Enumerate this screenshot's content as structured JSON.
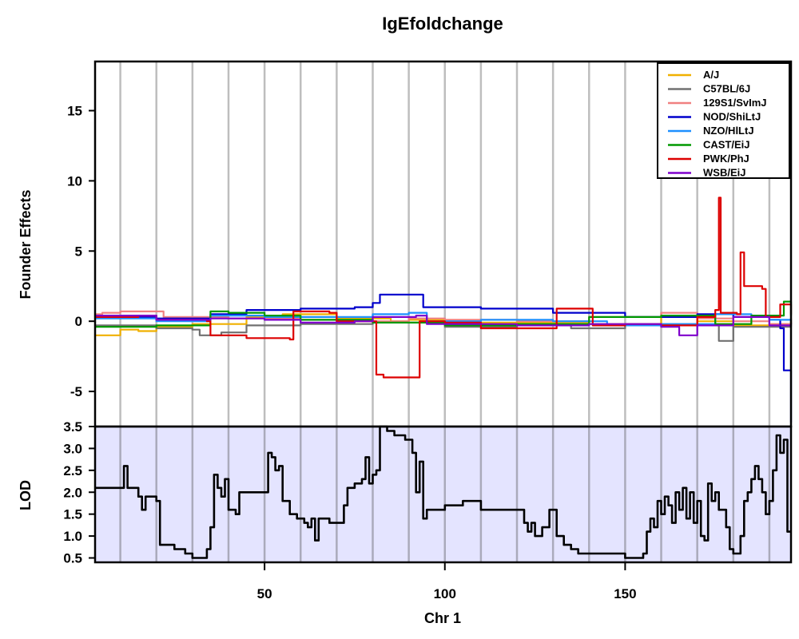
{
  "chart_data": [
    {
      "panel": "founder-effects",
      "type": "line",
      "title": "IgEfoldchange",
      "xlabel": "Chr 1",
      "ylabel": "Founder Effects",
      "xlim": [
        3,
        196
      ],
      "ylim": [
        -7.5,
        18.5
      ],
      "yticks": [
        -5,
        0,
        5,
        10,
        15
      ],
      "chromosome_grid_lines_every": 10,
      "legend": {
        "placement": "top-right"
      },
      "series": [
        {
          "name": "A/J",
          "color": "#F0B000",
          "points": [
            [
              3,
              -1.0
            ],
            [
              10,
              -0.6
            ],
            [
              15,
              -0.7
            ],
            [
              20,
              -0.4
            ],
            [
              30,
              -0.2
            ],
            [
              45,
              0.3
            ],
            [
              55,
              0.5
            ],
            [
              70,
              0.2
            ],
            [
              85,
              0.0
            ],
            [
              90,
              0.1
            ],
            [
              100,
              -0.1
            ],
            [
              120,
              -0.1
            ],
            [
              140,
              -0.2
            ],
            [
              160,
              0.3
            ],
            [
              170,
              0.0
            ],
            [
              180,
              -0.3
            ],
            [
              190,
              -0.2
            ],
            [
              196,
              0.2
            ]
          ]
        },
        {
          "name": "C57BL/6J",
          "color": "#707070",
          "points": [
            [
              3,
              -0.3
            ],
            [
              20,
              -0.5
            ],
            [
              30,
              -0.6
            ],
            [
              32,
              -1.0
            ],
            [
              38,
              -0.8
            ],
            [
              45,
              -0.3
            ],
            [
              60,
              -0.2
            ],
            [
              80,
              -0.1
            ],
            [
              100,
              -0.4
            ],
            [
              120,
              -0.3
            ],
            [
              135,
              -0.5
            ],
            [
              150,
              -0.2
            ],
            [
              170,
              -0.3
            ],
            [
              176,
              -1.4
            ],
            [
              180,
              -0.4
            ],
            [
              190,
              -0.4
            ],
            [
              196,
              0.0
            ]
          ]
        },
        {
          "name": "129S1/SvImJ",
          "color": "#F08080",
          "points": [
            [
              3,
              0.5
            ],
            [
              5,
              0.6
            ],
            [
              10,
              0.7
            ],
            [
              20,
              0.7
            ],
            [
              22,
              0.3
            ],
            [
              40,
              0.2
            ],
            [
              60,
              0.1
            ],
            [
              80,
              0.0
            ],
            [
              90,
              0.2
            ],
            [
              100,
              0.1
            ],
            [
              120,
              0.0
            ],
            [
              140,
              0.3
            ],
            [
              160,
              0.6
            ],
            [
              170,
              0.2
            ],
            [
              180,
              0.0
            ],
            [
              190,
              -0.2
            ],
            [
              196,
              0.1
            ]
          ]
        },
        {
          "name": "NOD/ShiLtJ",
          "color": "#0000CC",
          "points": [
            [
              3,
              0.3
            ],
            [
              20,
              0.2
            ],
            [
              35,
              0.5
            ],
            [
              45,
              0.8
            ],
            [
              60,
              0.9
            ],
            [
              75,
              1.0
            ],
            [
              80,
              1.3
            ],
            [
              82,
              1.9
            ],
            [
              92,
              1.9
            ],
            [
              94,
              1.0
            ],
            [
              110,
              0.9
            ],
            [
              130,
              0.6
            ],
            [
              150,
              0.3
            ],
            [
              170,
              0.5
            ],
            [
              180,
              0.3
            ],
            [
              190,
              0.1
            ],
            [
              193,
              -0.5
            ],
            [
              194,
              -3.5
            ],
            [
              196,
              -7.2
            ]
          ]
        },
        {
          "name": "NZO/HlLtJ",
          "color": "#1E90FF",
          "points": [
            [
              3,
              0.2
            ],
            [
              20,
              0.0
            ],
            [
              35,
              0.4
            ],
            [
              50,
              0.3
            ],
            [
              65,
              0.3
            ],
            [
              80,
              0.5
            ],
            [
              90,
              0.6
            ],
            [
              95,
              0.0
            ],
            [
              110,
              0.1
            ],
            [
              130,
              0.0
            ],
            [
              145,
              -0.3
            ],
            [
              160,
              -0.2
            ],
            [
              175,
              0.5
            ],
            [
              185,
              0.3
            ],
            [
              190,
              0.1
            ],
            [
              196,
              0.0
            ]
          ]
        },
        {
          "name": "CAST/EiJ",
          "color": "#009900",
          "points": [
            [
              3,
              -0.4
            ],
            [
              20,
              -0.3
            ],
            [
              35,
              0.7
            ],
            [
              40,
              0.6
            ],
            [
              50,
              0.4
            ],
            [
              60,
              0.1
            ],
            [
              80,
              -0.1
            ],
            [
              100,
              -0.3
            ],
            [
              120,
              -0.2
            ],
            [
              140,
              0.3
            ],
            [
              160,
              0.4
            ],
            [
              175,
              -0.2
            ],
            [
              185,
              0.4
            ],
            [
              194,
              1.4
            ],
            [
              196,
              0.4
            ]
          ]
        },
        {
          "name": "PWK/PhJ",
          "color": "#DD0000",
          "points": [
            [
              3,
              0.3
            ],
            [
              15,
              0.4
            ],
            [
              20,
              0.1
            ],
            [
              34,
              0.0
            ],
            [
              35,
              -1.0
            ],
            [
              45,
              -1.2
            ],
            [
              57,
              -1.3
            ],
            [
              58,
              0.7
            ],
            [
              68,
              0.6
            ],
            [
              70,
              0.0
            ],
            [
              80,
              0.0
            ],
            [
              81,
              -3.8
            ],
            [
              83,
              -4.0
            ],
            [
              92,
              -4.0
            ],
            [
              93,
              0.0
            ],
            [
              100,
              -0.1
            ],
            [
              110,
              -0.5
            ],
            [
              130,
              -0.5
            ],
            [
              131,
              0.9
            ],
            [
              140,
              0.9
            ],
            [
              141,
              -0.3
            ],
            [
              150,
              -0.2
            ],
            [
              160,
              -0.3
            ],
            [
              170,
              0.3
            ],
            [
              175,
              0.8
            ],
            [
              176,
              8.8
            ],
            [
              176.5,
              0.6
            ],
            [
              181,
              0.5
            ],
            [
              182,
              4.9
            ],
            [
              183,
              2.5
            ],
            [
              188,
              2.3
            ],
            [
              189,
              0.3
            ],
            [
              193,
              1.2
            ],
            [
              196,
              0.5
            ]
          ]
        },
        {
          "name": "WSB/EiJ",
          "color": "#7F00CC",
          "points": [
            [
              3,
              0.4
            ],
            [
              20,
              0.1
            ],
            [
              35,
              0.2
            ],
            [
              50,
              0.1
            ],
            [
              60,
              -0.1
            ],
            [
              75,
              0.0
            ],
            [
              80,
              0.3
            ],
            [
              92,
              0.4
            ],
            [
              95,
              -0.2
            ],
            [
              120,
              -0.3
            ],
            [
              140,
              -0.2
            ],
            [
              160,
              -0.4
            ],
            [
              165,
              -1.0
            ],
            [
              170,
              -0.3
            ],
            [
              180,
              0.3
            ],
            [
              190,
              -0.3
            ],
            [
              196,
              -0.1
            ]
          ]
        }
      ]
    },
    {
      "panel": "lod",
      "type": "line",
      "xlabel": "Chr 1",
      "ylabel": "LOD",
      "xlim": [
        3,
        196
      ],
      "ylim": [
        0.4,
        3.5
      ],
      "xticks": [
        50,
        100,
        150
      ],
      "yticks": [
        0.5,
        1.0,
        1.5,
        2.0,
        2.5,
        3.0,
        3.5
      ],
      "series": [
        {
          "color": "#000000",
          "points": [
            [
              3,
              2.1
            ],
            [
              10,
              2.1
            ],
            [
              11,
              2.6
            ],
            [
              12,
              2.1
            ],
            [
              15,
              1.9
            ],
            [
              16,
              1.6
            ],
            [
              17,
              1.9
            ],
            [
              20,
              1.8
            ],
            [
              21,
              0.8
            ],
            [
              25,
              0.7
            ],
            [
              28,
              0.6
            ],
            [
              30,
              0.5
            ],
            [
              33,
              0.5
            ],
            [
              34,
              0.7
            ],
            [
              35,
              1.2
            ],
            [
              36,
              2.4
            ],
            [
              37,
              2.1
            ],
            [
              38,
              1.9
            ],
            [
              39,
              2.3
            ],
            [
              40,
              1.6
            ],
            [
              42,
              1.5
            ],
            [
              43,
              2.0
            ],
            [
              48,
              2.0
            ],
            [
              50,
              2.0
            ],
            [
              51,
              2.9
            ],
            [
              52,
              2.8
            ],
            [
              53,
              2.5
            ],
            [
              54,
              2.6
            ],
            [
              55,
              1.8
            ],
            [
              57,
              1.5
            ],
            [
              59,
              1.4
            ],
            [
              61,
              1.3
            ],
            [
              62,
              1.2
            ],
            [
              63,
              1.4
            ],
            [
              64,
              0.9
            ],
            [
              65,
              1.4
            ],
            [
              68,
              1.3
            ],
            [
              70,
              1.3
            ],
            [
              72,
              1.7
            ],
            [
              73,
              2.1
            ],
            [
              75,
              2.2
            ],
            [
              77,
              2.3
            ],
            [
              78,
              2.8
            ],
            [
              79,
              2.2
            ],
            [
              80,
              2.4
            ],
            [
              81,
              2.5
            ],
            [
              82,
              3.5
            ],
            [
              84,
              3.4
            ],
            [
              86,
              3.3
            ],
            [
              89,
              3.2
            ],
            [
              91,
              2.9
            ],
            [
              92,
              2.0
            ],
            [
              93,
              2.7
            ],
            [
              94,
              1.4
            ],
            [
              95,
              1.6
            ],
            [
              100,
              1.7
            ],
            [
              105,
              1.8
            ],
            [
              110,
              1.6
            ],
            [
              115,
              1.6
            ],
            [
              120,
              1.6
            ],
            [
              122,
              1.3
            ],
            [
              123,
              1.1
            ],
            [
              124,
              1.3
            ],
            [
              125,
              1.0
            ],
            [
              127,
              1.2
            ],
            [
              129,
              1.6
            ],
            [
              130,
              1.6
            ],
            [
              131,
              1.0
            ],
            [
              133,
              0.8
            ],
            [
              135,
              0.7
            ],
            [
              137,
              0.6
            ],
            [
              140,
              0.6
            ],
            [
              145,
              0.6
            ],
            [
              150,
              0.5
            ],
            [
              155,
              0.6
            ],
            [
              156,
              1.1
            ],
            [
              157,
              1.4
            ],
            [
              158,
              1.2
            ],
            [
              159,
              1.8
            ],
            [
              160,
              1.5
            ],
            [
              161,
              1.9
            ],
            [
              162,
              1.7
            ],
            [
              163,
              1.3
            ],
            [
              164,
              2.0
            ],
            [
              165,
              1.6
            ],
            [
              166,
              2.1
            ],
            [
              167,
              1.4
            ],
            [
              168,
              2.0
            ],
            [
              169,
              1.3
            ],
            [
              170,
              1.8
            ],
            [
              171,
              1.0
            ],
            [
              172,
              0.9
            ],
            [
              173,
              2.2
            ],
            [
              174,
              1.8
            ],
            [
              175,
              2.0
            ],
            [
              176,
              1.6
            ],
            [
              178,
              1.2
            ],
            [
              179,
              0.7
            ],
            [
              180,
              0.6
            ],
            [
              182,
              1.0
            ],
            [
              183,
              1.8
            ],
            [
              184,
              2.0
            ],
            [
              185,
              2.3
            ],
            [
              186,
              2.6
            ],
            [
              187,
              2.3
            ],
            [
              188,
              2.0
            ],
            [
              189,
              1.5
            ],
            [
              190,
              1.8
            ],
            [
              191,
              2.5
            ],
            [
              192,
              3.3
            ],
            [
              193,
              2.9
            ],
            [
              194,
              3.2
            ],
            [
              195,
              1.1
            ],
            [
              196,
              1.1
            ]
          ]
        }
      ]
    }
  ]
}
